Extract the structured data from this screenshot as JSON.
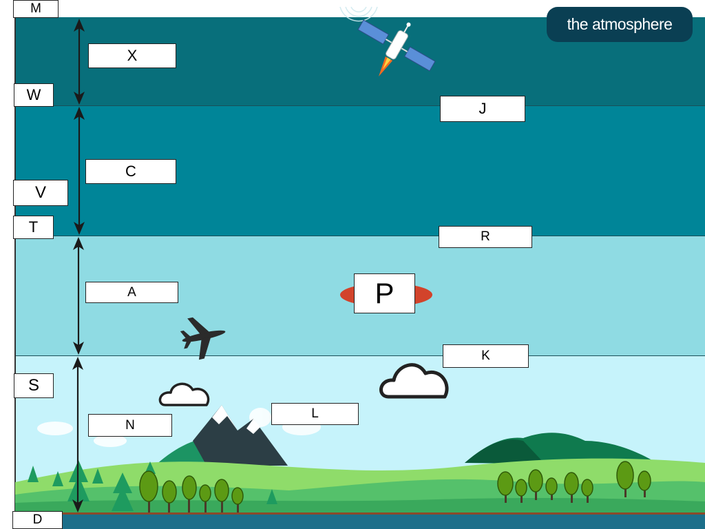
{
  "title": "the atmosphere",
  "labels": {
    "M": "M",
    "X": "X",
    "W": "W",
    "J": "J",
    "C": "C",
    "V": "V",
    "T": "T",
    "R": "R",
    "A": "A",
    "P": "P",
    "K": "K",
    "S": "S",
    "L": "L",
    "N": "N",
    "D": "D"
  },
  "colors": {
    "thermosphere": "#086f7b",
    "mesosphere": "#008598",
    "stratosphere": "#8fdbe3",
    "troposphere": "#c6f3fb",
    "ozone": "#d2432b",
    "title_bg": "#0a3f53"
  },
  "icons": [
    "satellite-icon",
    "airplane-icon",
    "cloud-icon",
    "mountain-icon",
    "tree-icon",
    "water-waves-icon"
  ]
}
